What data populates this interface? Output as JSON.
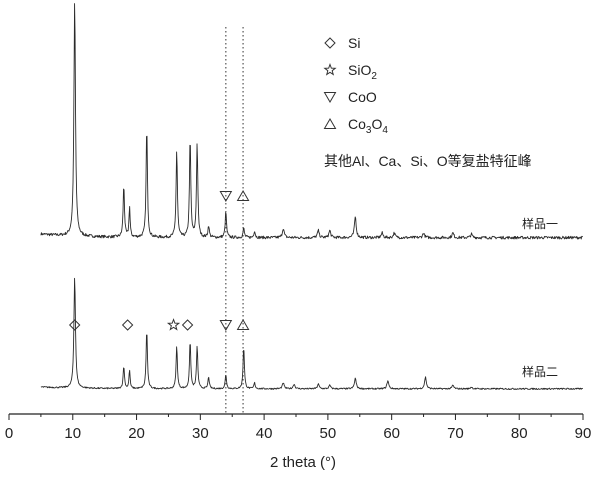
{
  "chart_data": {
    "type": "line",
    "title": "",
    "xlabel": "2 theta (°)",
    "ylabel": "",
    "xlim": [
      0,
      90
    ],
    "xticks": [
      "0",
      "10",
      "20",
      "30",
      "40",
      "50",
      "60",
      "70",
      "80",
      "90"
    ],
    "grid": false,
    "legend_position": "top-right",
    "legend": [
      {
        "marker": "diamond",
        "label": "Si"
      },
      {
        "marker": "star",
        "label": "SiO",
        "sub": "2",
        "tail": ""
      },
      {
        "marker": "triangle-down",
        "label": "CoO"
      },
      {
        "marker": "triangle-up",
        "label": "Co",
        "sub": "3",
        "tail": "O",
        "sub2": "4"
      }
    ],
    "legend_note": "其他Al、Ca、Si、O等复盐特征峰",
    "reference_lines": [
      34.0,
      36.7
    ],
    "series": [
      {
        "name": "样品一",
        "baseline": 0.03,
        "peaks": [
          [
            10.3,
            1.0,
            0.35
          ],
          [
            18.0,
            0.22,
            0.3
          ],
          [
            18.9,
            0.13,
            0.25
          ],
          [
            21.6,
            0.47,
            0.3
          ],
          [
            26.3,
            0.37,
            0.3
          ],
          [
            28.4,
            0.42,
            0.3
          ],
          [
            29.5,
            0.4,
            0.3
          ],
          [
            31.3,
            0.05,
            0.3
          ],
          [
            34.0,
            0.11,
            0.3
          ],
          [
            36.8,
            0.04,
            0.3
          ],
          [
            38.5,
            0.03,
            0.3
          ],
          [
            43.0,
            0.04,
            0.4
          ],
          [
            48.5,
            0.03,
            0.4
          ],
          [
            50.3,
            0.03,
            0.4
          ],
          [
            54.3,
            0.09,
            0.4
          ],
          [
            58.5,
            0.02,
            0.4
          ],
          [
            60.4,
            0.02,
            0.4
          ],
          [
            65.0,
            0.02,
            0.4
          ],
          [
            69.6,
            0.02,
            0.4
          ],
          [
            72.5,
            0.015,
            0.4
          ]
        ]
      },
      {
        "name": "样品二",
        "baseline": 0.03,
        "peaks": [
          [
            10.3,
            0.95,
            0.35
          ],
          [
            18.0,
            0.19,
            0.3
          ],
          [
            18.9,
            0.16,
            0.25
          ],
          [
            21.6,
            0.5,
            0.3
          ],
          [
            26.3,
            0.36,
            0.3
          ],
          [
            28.4,
            0.4,
            0.3
          ],
          [
            29.5,
            0.36,
            0.3
          ],
          [
            31.3,
            0.1,
            0.3
          ],
          [
            34.0,
            0.12,
            0.3
          ],
          [
            36.8,
            0.36,
            0.3
          ],
          [
            38.5,
            0.05,
            0.3
          ],
          [
            43.0,
            0.05,
            0.4
          ],
          [
            44.7,
            0.04,
            0.4
          ],
          [
            48.5,
            0.04,
            0.4
          ],
          [
            50.3,
            0.03,
            0.4
          ],
          [
            54.3,
            0.09,
            0.4
          ],
          [
            59.4,
            0.07,
            0.4
          ],
          [
            65.3,
            0.1,
            0.4
          ],
          [
            69.6,
            0.03,
            0.4
          ],
          [
            72.5,
            0.015,
            0.4
          ]
        ]
      }
    ],
    "annotations": [
      {
        "series": 0,
        "x": 34.0,
        "marker": "triangle-down"
      },
      {
        "series": 0,
        "x": 36.7,
        "marker": "triangle-up"
      },
      {
        "series": 1,
        "x": 10.3,
        "marker": "diamond"
      },
      {
        "series": 1,
        "x": 18.6,
        "marker": "diamond"
      },
      {
        "series": 1,
        "x": 25.8,
        "marker": "star"
      },
      {
        "series": 1,
        "x": 28.0,
        "marker": "diamond"
      },
      {
        "series": 1,
        "x": 34.0,
        "marker": "triangle-down"
      },
      {
        "series": 1,
        "x": 36.7,
        "marker": "triangle-up"
      }
    ]
  }
}
